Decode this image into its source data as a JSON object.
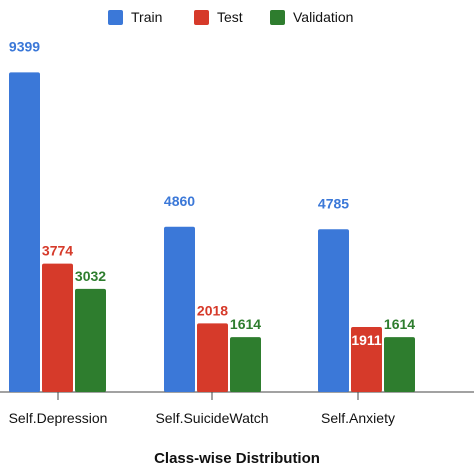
{
  "chart_data": {
    "type": "bar",
    "categories": [
      "Self.Depression",
      "Self.SuicideWatch",
      "Self.Anxiety"
    ],
    "series": [
      {
        "name": "Train",
        "values": [
          9399,
          4860,
          4785
        ],
        "color": "#3b78d8"
      },
      {
        "name": "Test",
        "values": [
          3774,
          2018,
          1911
        ],
        "color": "#d63a2a"
      },
      {
        "name": "Validation",
        "values": [
          3032,
          1614,
          1614
        ],
        "color": "#2e7d2e"
      }
    ],
    "title": "",
    "xlabel": "Class-wise Distribution",
    "ylabel": "",
    "ylim": [
      0,
      10000
    ],
    "grid": false,
    "legend": "top-center"
  }
}
